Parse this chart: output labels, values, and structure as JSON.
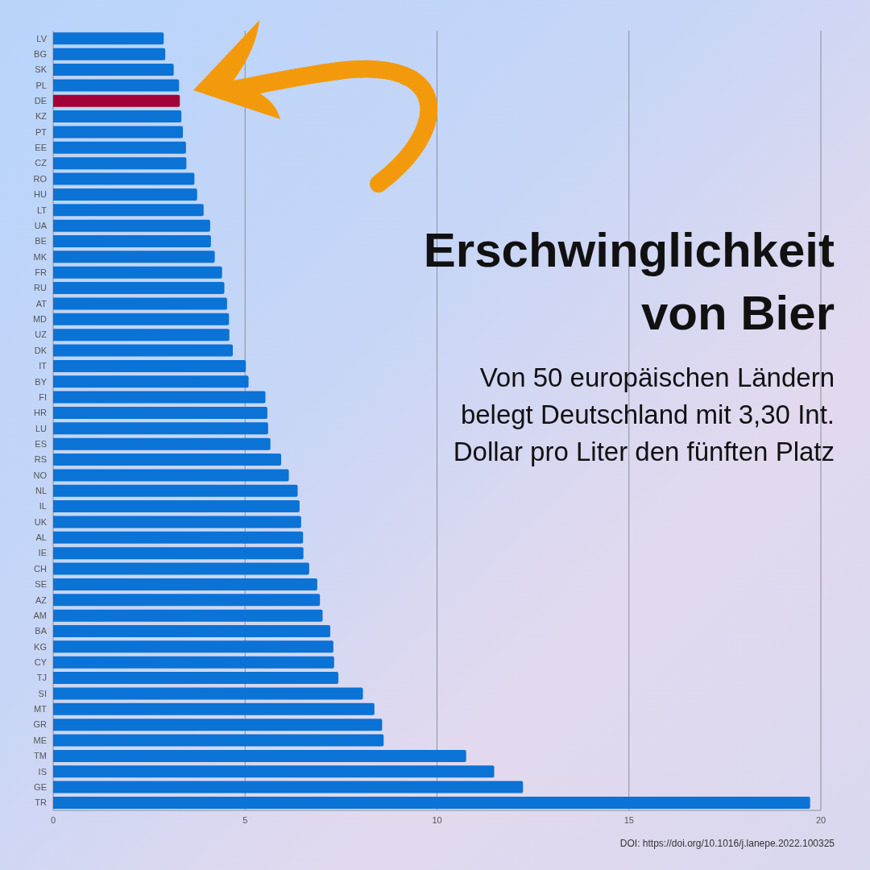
{
  "chart_data": {
    "type": "bar",
    "orientation": "horizontal",
    "title": "Erschwinglichkeit von Bier",
    "subtitle": "Von 50 europäischen Ländern belegt Deutschland mit 3,30 Int. Dollar pro Liter den fünften Platz",
    "categories": [
      "LV",
      "BG",
      "SK",
      "PL",
      "DE",
      "KZ",
      "PT",
      "EE",
      "CZ",
      "RO",
      "HU",
      "LT",
      "UA",
      "BE",
      "MK",
      "FR",
      "RU",
      "AT",
      "MD",
      "UZ",
      "DK",
      "IT",
      "BY",
      "FI",
      "HR",
      "LU",
      "ES",
      "RS",
      "NO",
      "NL",
      "IL",
      "UK",
      "AL",
      "IE",
      "CH",
      "SE",
      "AZ",
      "AM",
      "BA",
      "KG",
      "CY",
      "TJ",
      "SI",
      "MT",
      "GR",
      "ME",
      "TM",
      "IS",
      "GE",
      "TR"
    ],
    "values": [
      2.88,
      2.92,
      3.14,
      3.28,
      3.3,
      3.34,
      3.38,
      3.46,
      3.47,
      3.68,
      3.75,
      3.92,
      4.09,
      4.11,
      4.21,
      4.4,
      4.46,
      4.53,
      4.58,
      4.59,
      4.68,
      5.02,
      5.09,
      5.53,
      5.58,
      5.6,
      5.66,
      5.94,
      6.14,
      6.37,
      6.42,
      6.46,
      6.51,
      6.52,
      6.67,
      6.88,
      6.95,
      7.02,
      7.22,
      7.3,
      7.32,
      7.43,
      8.07,
      8.37,
      8.57,
      8.61,
      10.76,
      11.49,
      12.24,
      19.72
    ],
    "colors": [
      "#0b72d6",
      "#0b72d6",
      "#0b72d6",
      "#0b72d6",
      "#a30038",
      "#0b72d6",
      "#0b72d6",
      "#0b72d6",
      "#0b72d6",
      "#0b72d6",
      "#0b72d6",
      "#0b72d6",
      "#0b72d6",
      "#0b72d6",
      "#0b72d6",
      "#0b72d6",
      "#0b72d6",
      "#0b72d6",
      "#0b72d6",
      "#0b72d6",
      "#0b72d6",
      "#0b72d6",
      "#0b72d6",
      "#0b72d6",
      "#0b72d6",
      "#0b72d6",
      "#0b72d6",
      "#0b72d6",
      "#0b72d6",
      "#0b72d6",
      "#0b72d6",
      "#0b72d6",
      "#0b72d6",
      "#0b72d6",
      "#0b72d6",
      "#0b72d6",
      "#0b72d6",
      "#0b72d6",
      "#0b72d6",
      "#0b72d6",
      "#0b72d6",
      "#0b72d6",
      "#0b72d6",
      "#0b72d6",
      "#0b72d6",
      "#0b72d6",
      "#0b72d6",
      "#0b72d6",
      "#0b72d6",
      "#0b72d6"
    ],
    "xlim": [
      0,
      20
    ],
    "xticks": [
      0,
      5,
      10,
      15,
      20
    ],
    "grid": "x",
    "annotations": [
      "DOI: https://doi.org/10.1016/j.lanepe.2022.100325"
    ]
  }
}
